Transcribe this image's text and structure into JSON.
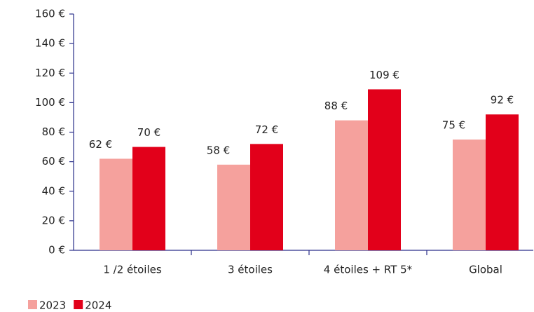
{
  "chart_data": {
    "type": "bar",
    "categories": [
      "1 /2 étoiles",
      "3 étoiles",
      "4 étoiles + RT 5*",
      "Global"
    ],
    "series": [
      {
        "name": "2023",
        "color": "#f5a19d",
        "values": [
          62,
          58,
          88,
          75
        ],
        "value_labels": [
          "62 €",
          "58 €",
          "88 €",
          "75 €"
        ]
      },
      {
        "name": "2024",
        "color": "#e2001a",
        "values": [
          70,
          72,
          109,
          92
        ],
        "value_labels": [
          "70 €",
          "72 €",
          "109 €",
          "92 €"
        ]
      }
    ],
    "ylim": [
      0,
      160
    ],
    "yticks": [
      {
        "value": 0,
        "label": "0 €"
      },
      {
        "value": 20,
        "label": "20 €"
      },
      {
        "value": 40,
        "label": "40 €"
      },
      {
        "value": 60,
        "label": "60 €"
      },
      {
        "value": 80,
        "label": "80 €"
      },
      {
        "value": 100,
        "label": "100 €"
      },
      {
        "value": 120,
        "label": "120 €"
      },
      {
        "value": 140,
        "label": "140 €"
      },
      {
        "value": 160,
        "label": "160 €"
      }
    ],
    "legend": "bottom-left"
  }
}
